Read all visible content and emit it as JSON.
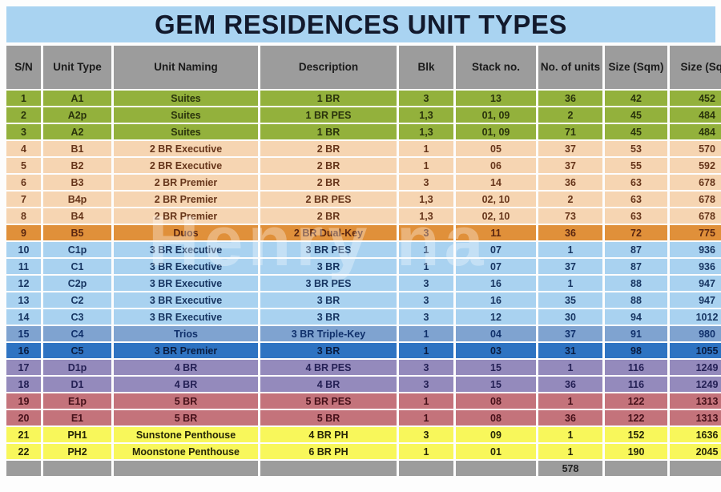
{
  "title": "GEM RESIDENCES UNIT TYPES",
  "watermark": "Henry na",
  "colors": {
    "title_bg": "#a9d3f1",
    "title_text": "#12192c",
    "header_bg": "#9c9c9c",
    "header_text": "#1b1b1b",
    "total_bg": "#9c9c9c",
    "total_text": "#1f1f1f",
    "groups": {
      "a": {
        "bg": "#93b13c",
        "text": "#2a330c"
      },
      "b": {
        "bg": "#f6d5b2",
        "text": "#66351a"
      },
      "b5": {
        "bg": "#e0903a",
        "text": "#5a2610"
      },
      "c": {
        "bg": "#a9d2f0",
        "text": "#173561"
      },
      "c4": {
        "bg": "#7fa3d0",
        "text": "#10306b"
      },
      "c5": {
        "bg": "#2e73c2",
        "text": "#0a1c40"
      },
      "d": {
        "bg": "#948abc",
        "text": "#242055"
      },
      "e": {
        "bg": "#c4737b",
        "text": "#451019"
      },
      "ph": {
        "bg": "#f8f75b",
        "text": "#262607"
      }
    }
  },
  "table": {
    "columns": [
      "S/N",
      "Unit Type",
      "Unit Naming",
      "Description",
      "Blk",
      "Stack no.",
      "No. of units",
      "Size (Sqm)",
      "Size (Sqft)"
    ],
    "rows": [
      {
        "group": "a",
        "cells": [
          "1",
          "A1",
          "Suites",
          "1 BR",
          "3",
          "13",
          "36",
          "42",
          "452"
        ]
      },
      {
        "group": "a",
        "cells": [
          "2",
          "A2p",
          "Suites",
          "1 BR PES",
          "1,3",
          "01, 09",
          "2",
          "45",
          "484"
        ]
      },
      {
        "group": "a",
        "cells": [
          "3",
          "A2",
          "Suites",
          "1 BR",
          "1,3",
          "01, 09",
          "71",
          "45",
          "484"
        ]
      },
      {
        "group": "b",
        "cells": [
          "4",
          "B1",
          "2 BR Executive",
          "2 BR",
          "1",
          "05",
          "37",
          "53",
          "570"
        ]
      },
      {
        "group": "b",
        "cells": [
          "5",
          "B2",
          "2 BR Executive",
          "2 BR",
          "1",
          "06",
          "37",
          "55",
          "592"
        ]
      },
      {
        "group": "b",
        "cells": [
          "6",
          "B3",
          "2 BR Premier",
          "2 BR",
          "3",
          "14",
          "36",
          "63",
          "678"
        ]
      },
      {
        "group": "b",
        "cells": [
          "7",
          "B4p",
          "2 BR Premier",
          "2 BR PES",
          "1,3",
          "02, 10",
          "2",
          "63",
          "678"
        ]
      },
      {
        "group": "b",
        "cells": [
          "8",
          "B4",
          "2 BR Premier",
          "2 BR",
          "1,3",
          "02, 10",
          "73",
          "63",
          "678"
        ]
      },
      {
        "group": "b5",
        "cells": [
          "9",
          "B5",
          "Duos",
          "2 BR Dual-Key",
          "3",
          "11",
          "36",
          "72",
          "775"
        ]
      },
      {
        "group": "c",
        "cells": [
          "10",
          "C1p",
          "3 BR Executive",
          "3 BR PES",
          "1",
          "07",
          "1",
          "87",
          "936"
        ]
      },
      {
        "group": "c",
        "cells": [
          "11",
          "C1",
          "3 BR Executive",
          "3 BR",
          "1",
          "07",
          "37",
          "87",
          "936"
        ]
      },
      {
        "group": "c",
        "cells": [
          "12",
          "C2p",
          "3 BR Executive",
          "3 BR PES",
          "3",
          "16",
          "1",
          "88",
          "947"
        ]
      },
      {
        "group": "c",
        "cells": [
          "13",
          "C2",
          "3 BR Executive",
          "3 BR",
          "3",
          "16",
          "35",
          "88",
          "947"
        ]
      },
      {
        "group": "c",
        "cells": [
          "14",
          "C3",
          "3 BR Executive",
          "3 BR",
          "3",
          "12",
          "30",
          "94",
          "1012"
        ]
      },
      {
        "group": "c4",
        "cells": [
          "15",
          "C4",
          "Trios",
          "3 BR Triple-Key",
          "1",
          "04",
          "37",
          "91",
          "980"
        ]
      },
      {
        "group": "c5",
        "cells": [
          "16",
          "C5",
          "3 BR Premier",
          "3 BR",
          "1",
          "03",
          "31",
          "98",
          "1055"
        ]
      },
      {
        "group": "d",
        "cells": [
          "17",
          "D1p",
          "4 BR",
          "4 BR PES",
          "3",
          "15",
          "1",
          "116",
          "1249"
        ]
      },
      {
        "group": "d",
        "cells": [
          "18",
          "D1",
          "4 BR",
          "4 BR",
          "3",
          "15",
          "36",
          "116",
          "1249"
        ]
      },
      {
        "group": "e",
        "cells": [
          "19",
          "E1p",
          "5 BR",
          "5 BR PES",
          "1",
          "08",
          "1",
          "122",
          "1313"
        ]
      },
      {
        "group": "e",
        "cells": [
          "20",
          "E1",
          "5 BR",
          "5 BR",
          "1",
          "08",
          "36",
          "122",
          "1313"
        ]
      },
      {
        "group": "ph",
        "cells": [
          "21",
          "PH1",
          "Sunstone Penthouse",
          "4 BR PH",
          "3",
          "09",
          "1",
          "152",
          "1636"
        ]
      },
      {
        "group": "ph",
        "cells": [
          "22",
          "PH2",
          "Moonstone Penthouse",
          "6 BR PH",
          "1",
          "01",
          "1",
          "190",
          "2045"
        ]
      }
    ],
    "total_units": "578"
  }
}
